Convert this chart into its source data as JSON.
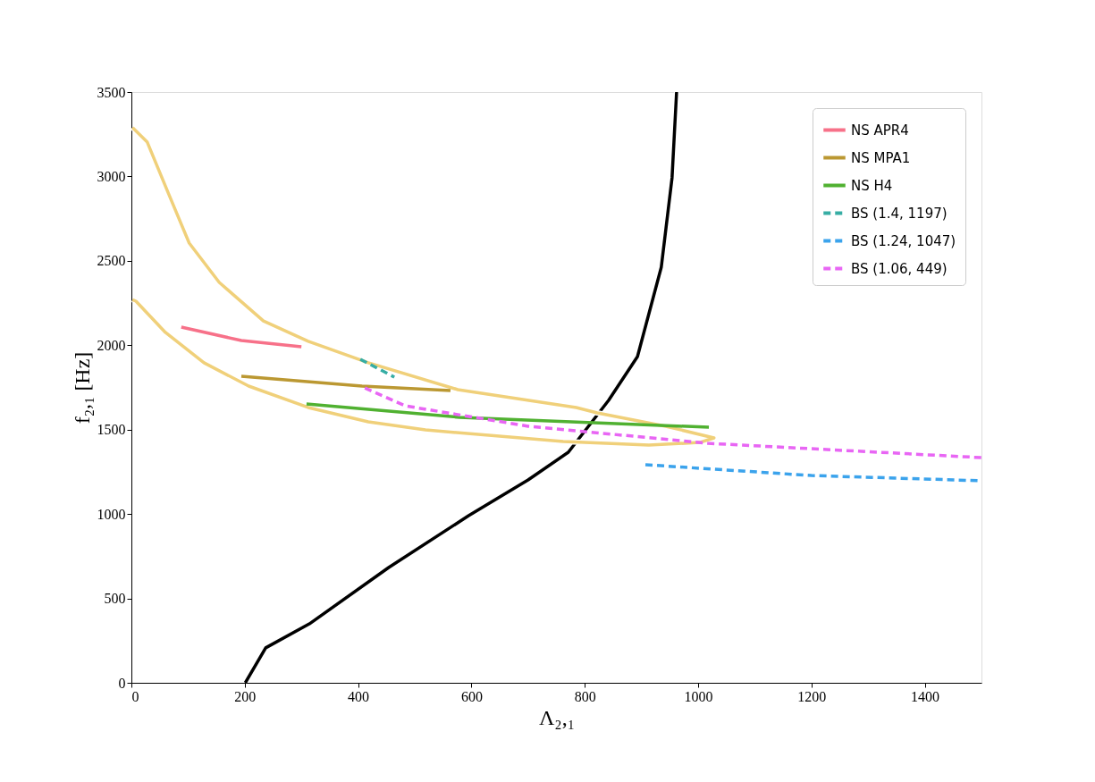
{
  "chart_data": {
    "type": "line",
    "xlabel": "Λ₂,₁",
    "ylabel": "f₂,₁ [Hz]",
    "xlim": [
      0,
      1500
    ],
    "ylim": [
      0,
      3500
    ],
    "xticks": [
      0,
      200,
      400,
      600,
      800,
      1000,
      1200,
      1400
    ],
    "yticks": [
      0,
      500,
      1000,
      1500,
      2000,
      2500,
      3000,
      3500
    ],
    "grid": false,
    "legend": "top right",
    "marker": "none",
    "series": [
      {
        "color": "#000000",
        "line_style": "solid",
        "x": [
          201,
          237,
          314,
          454,
          595,
          700,
          771,
          842,
          893,
          935,
          954,
          962
        ],
        "values": [
          0,
          207,
          349,
          683,
          990,
          1202,
          1366,
          1673,
          1933,
          2462,
          2992,
          3500
        ]
      },
      {
        "color": "#f0d07a",
        "line_style": "solid",
        "x": [
          2,
          28,
          65,
          102,
          155,
          233,
          312,
          418,
          576,
          785,
          822,
          943,
          1028,
          1003,
          913,
          762,
          519,
          418,
          312,
          207,
          128,
          60,
          8,
          2
        ],
        "values": [
          3290,
          3203,
          2902,
          2605,
          2372,
          2144,
          2023,
          1896,
          1737,
          1631,
          1599,
          1520,
          1451,
          1424,
          1408,
          1430,
          1498,
          1546,
          1631,
          1758,
          1896,
          2076,
          2261,
          2270
        ]
      },
      {
        "name": "NS APR4",
        "color": "#f77189",
        "line_style": "solid",
        "x": [
          88,
          194,
          300
        ],
        "values": [
          2107,
          2028,
          1991
        ]
      },
      {
        "name": "NS MPA1",
        "color": "#bb9832",
        "line_style": "solid",
        "x": [
          194,
          407,
          563
        ],
        "values": [
          1816,
          1758,
          1731
        ]
      },
      {
        "name": "NS H4",
        "color": "#50b131",
        "line_style": "solid",
        "x": [
          309,
          579,
          1019
        ],
        "values": [
          1652,
          1573,
          1514
        ]
      },
      {
        "name": "BS (1.4, 1197)",
        "color": "#36ada4",
        "line_style": "dashed",
        "x": [
          404,
          464
        ],
        "values": [
          1917,
          1811
        ]
      },
      {
        "name": "BS (1.24, 1047)",
        "color": "#3ba3ec",
        "line_style": "dashed",
        "x": [
          907,
          1200,
          1500
        ],
        "values": [
          1292,
          1228,
          1197
        ]
      },
      {
        "name": "BS (1.06, 449)",
        "color": "#e866f4",
        "line_style": "dashed",
        "x": [
          412,
          483,
          700,
          1017,
          1500
        ],
        "values": [
          1747,
          1641,
          1520,
          1419,
          1334
        ]
      }
    ]
  }
}
